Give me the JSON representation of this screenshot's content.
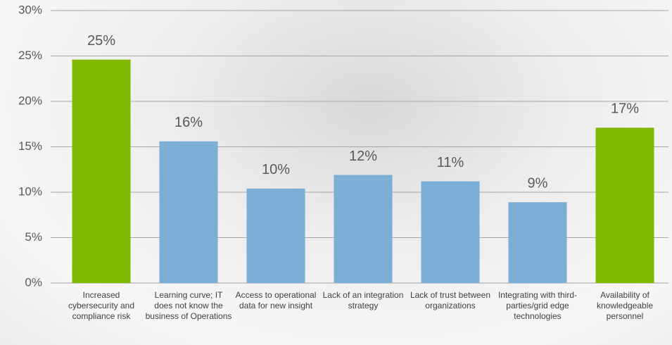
{
  "chart_data": {
    "type": "bar",
    "categories": [
      "Increased cybersecurity and compliance risk",
      "Learning curve; IT does not know the business of Operations",
      "Access to operational data for new insight",
      "Lack of an integration strategy",
      "Lack of trust between organizations",
      "Integrating with third-parties/grid edge technologies",
      "Availability of knowledgeable personnel"
    ],
    "values": [
      24.6,
      15.6,
      10.4,
      11.9,
      11.2,
      8.9,
      17.1
    ],
    "value_labels": [
      "25%",
      "16%",
      "10%",
      "12%",
      "11%",
      "9%",
      "17%"
    ],
    "colors": [
      "#7fba00",
      "#7bafd6",
      "#7bafd6",
      "#7bafd6",
      "#7bafd6",
      "#7bafd6",
      "#7fba00"
    ],
    "ylim": [
      0,
      30
    ],
    "yticks": [
      {
        "value": 0,
        "label": "0%"
      },
      {
        "value": 5,
        "label": "5%"
      },
      {
        "value": 10,
        "label": "10%"
      },
      {
        "value": 15,
        "label": "15%"
      },
      {
        "value": 20,
        "label": "20%"
      },
      {
        "value": 25,
        "label": "25%"
      },
      {
        "value": 30,
        "label": "30%"
      }
    ],
    "grid": true
  }
}
